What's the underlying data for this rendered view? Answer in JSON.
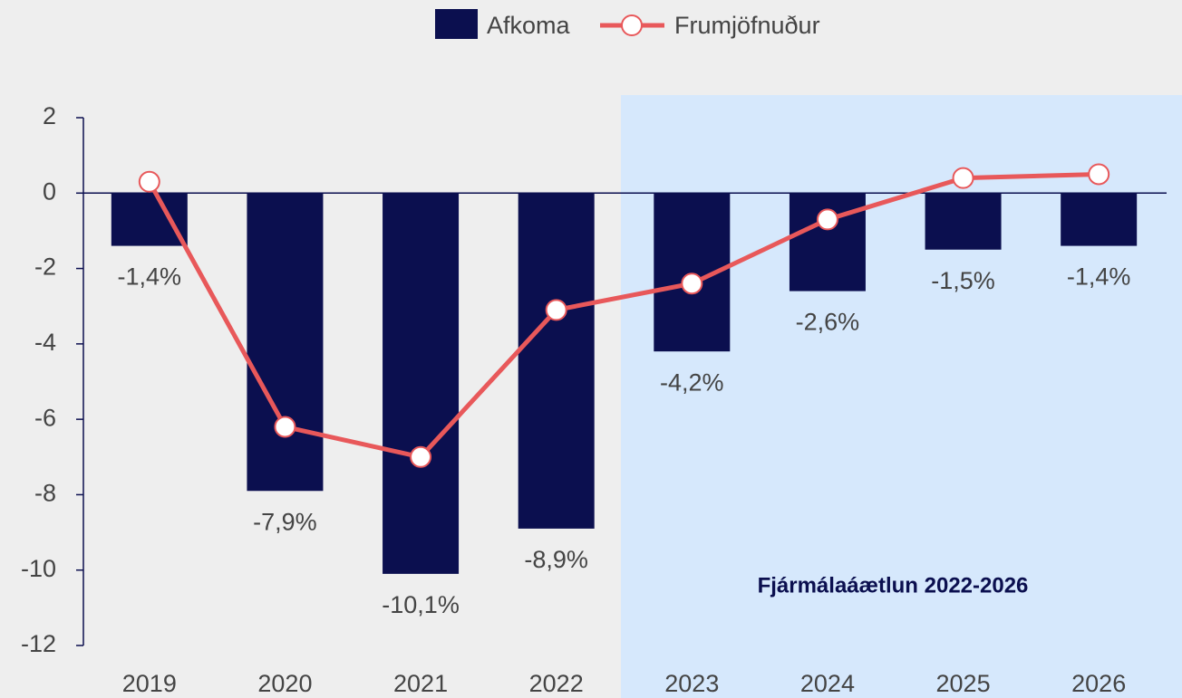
{
  "chart_data": {
    "type": "bar",
    "categories": [
      "2019",
      "2020",
      "2021",
      "2022",
      "2023",
      "2024",
      "2025",
      "2026"
    ],
    "series": [
      {
        "name": "Afkoma",
        "type": "bar",
        "color": "#0b0f4f",
        "values": [
          -1.4,
          -7.9,
          -10.1,
          -8.9,
          -4.2,
          -2.6,
          -1.5,
          -1.4
        ],
        "value_labels": [
          "-1,4%",
          "-7,9%",
          "-10,1%",
          "-8,9%",
          "-4,2%",
          "-2,6%",
          "-1,5%",
          "-1,4%"
        ]
      },
      {
        "name": "Frumjöfnuður",
        "type": "line",
        "color": "#e8585a",
        "values": [
          0.3,
          -6.2,
          -7.0,
          -3.1,
          -2.4,
          -0.7,
          0.4,
          0.5
        ]
      }
    ],
    "annotation": "Fjármálaáætlun 2022-2026",
    "ylim": [
      -12,
      2
    ],
    "yticks": [
      -12,
      -10,
      -8,
      -6,
      -4,
      -2,
      0,
      2
    ],
    "legend": "top"
  }
}
